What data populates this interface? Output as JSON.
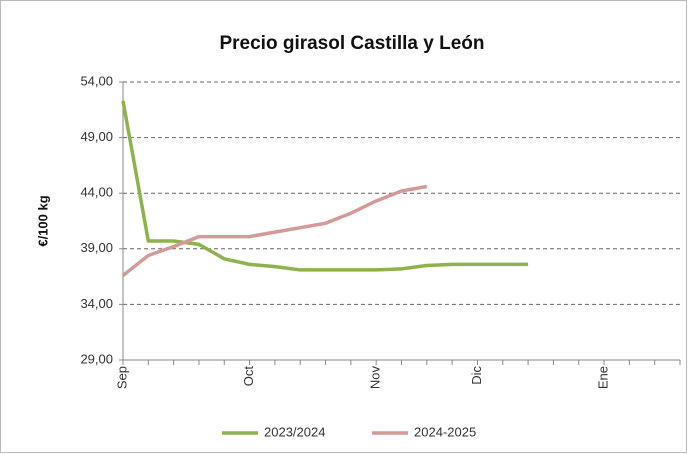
{
  "chart_data": {
    "type": "line",
    "title": "Precio girasol Castilla y León",
    "y_label": "€/100 kg",
    "categories": [
      "Sep",
      null,
      null,
      null,
      null,
      "Oct",
      null,
      null,
      null,
      null,
      "Nov",
      null,
      null,
      null,
      "Dic",
      null,
      null,
      null,
      null,
      "Ene",
      null,
      null,
      null
    ],
    "series": [
      {
        "name": "2023/2024",
        "color": "#8db34a",
        "values": [
          52.3,
          39.7,
          39.7,
          39.4,
          38.1,
          37.6,
          37.4,
          37.1,
          37.1,
          37.1,
          37.1,
          37.2,
          37.5,
          37.6,
          37.6,
          37.6,
          37.6,
          null,
          null,
          null,
          null,
          null,
          null
        ]
      },
      {
        "name": "2024-2025",
        "color": "#d49a98",
        "values": [
          36.6,
          38.4,
          39.2,
          40.1,
          40.1,
          40.1,
          40.5,
          40.9,
          41.3,
          42.2,
          43.3,
          44.2,
          44.6,
          null,
          null,
          null,
          null,
          null,
          null,
          null,
          null,
          null,
          null
        ]
      }
    ],
    "ylim": [
      29,
      54
    ],
    "yticks": [
      {
        "value": 29,
        "label": "29,00"
      },
      {
        "value": 34,
        "label": "34,00"
      },
      {
        "value": 39,
        "label": "39,00"
      },
      {
        "value": 44,
        "label": "44,00"
      },
      {
        "value": 49,
        "label": "49,00"
      },
      {
        "value": 54,
        "label": "54,00"
      }
    ],
    "grid": true,
    "legend": "bottom"
  }
}
